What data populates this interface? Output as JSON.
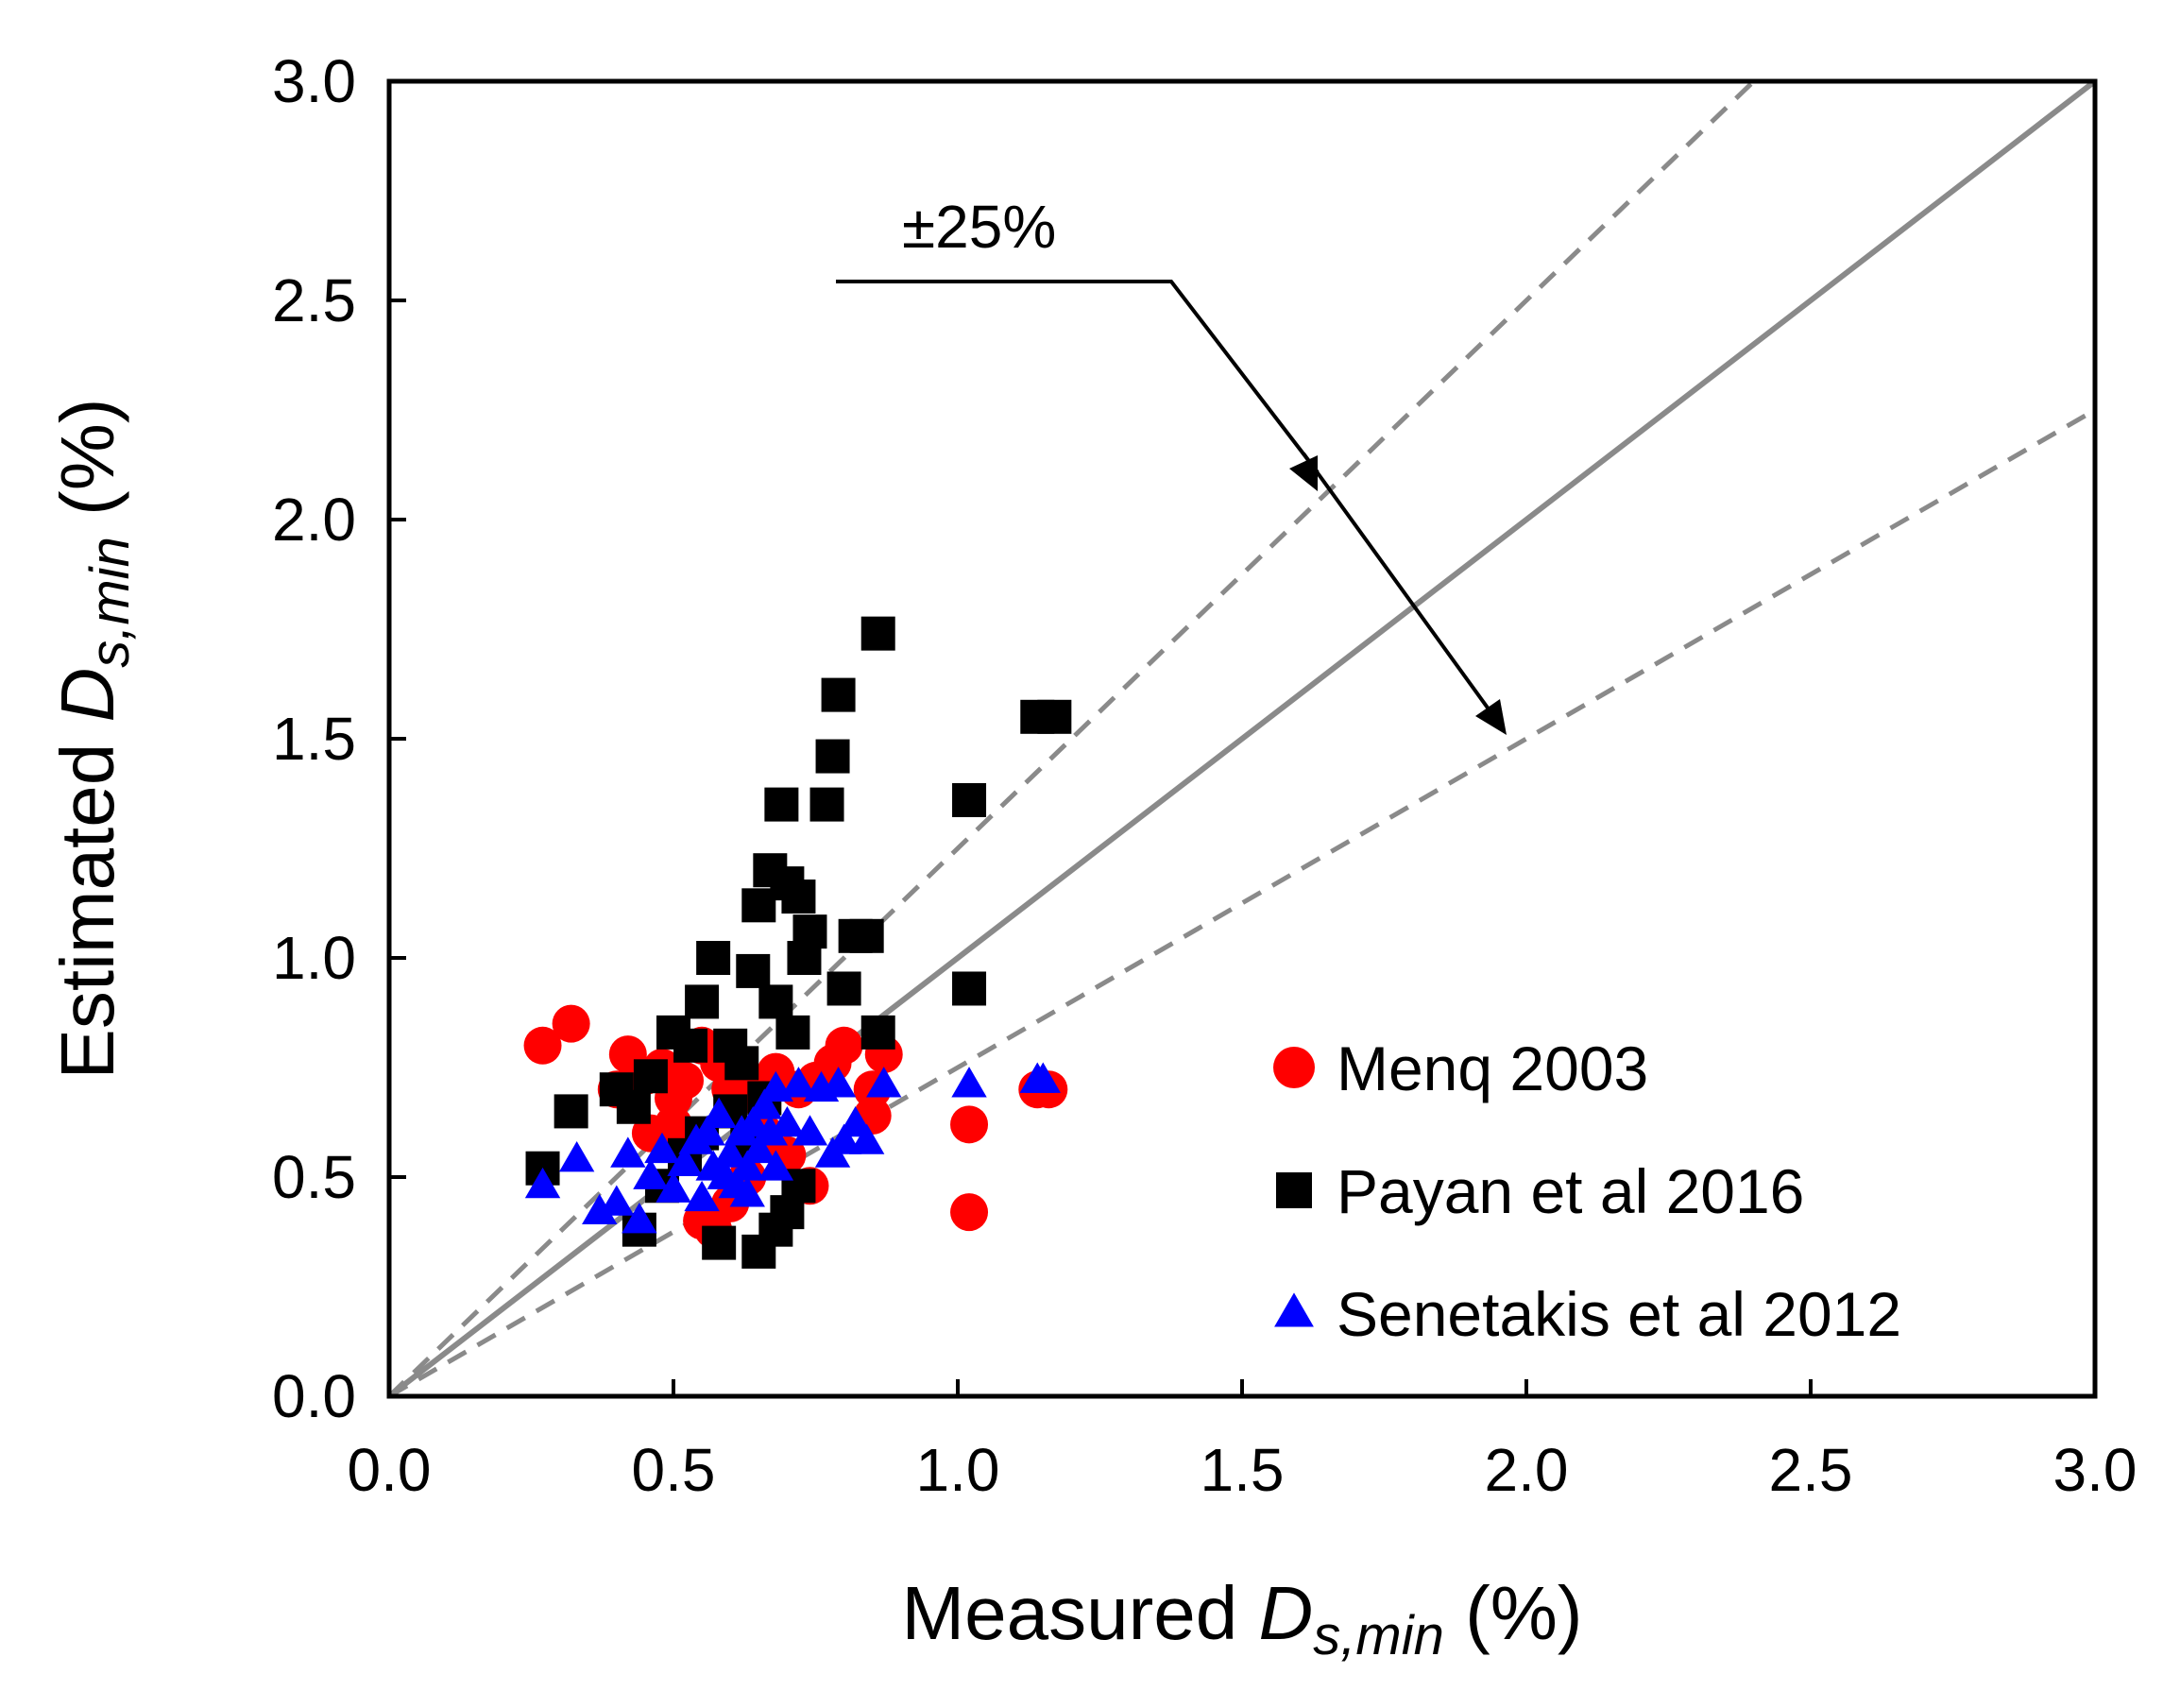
{
  "chart_data": {
    "type": "scatter",
    "xlabel": {
      "prefix": "Measured ",
      "var": "D",
      "sub": "s,min",
      "suffix": " (%)"
    },
    "ylabel": {
      "prefix": "Estimated ",
      "var": "D",
      "sub": "s,min",
      "suffix": " (%)"
    },
    "xlim": [
      0,
      3
    ],
    "ylim": [
      0,
      3
    ],
    "xticks": [
      "0.0",
      "0.5",
      "1.0",
      "1.5",
      "2.0",
      "2.5",
      "3.0"
    ],
    "yticks": [
      "0.0",
      "0.5",
      "1.0",
      "1.5",
      "2.0",
      "2.5",
      "3.0"
    ],
    "grid": false,
    "legend_position": "bottom-right",
    "annotation": "±25%",
    "reference_lines": [
      {
        "slope": 1.0,
        "style": "solid",
        "color": "#8a8a8a"
      },
      {
        "slope": 1.25,
        "style": "dashed",
        "color": "#8a8a8a"
      },
      {
        "slope": 0.75,
        "style": "dashed",
        "color": "#8a8a8a"
      }
    ],
    "series": [
      {
        "name": "Menq 2003",
        "marker": "circle",
        "color": "#ff0000",
        "points": [
          [
            0.27,
            0.8
          ],
          [
            0.32,
            0.85
          ],
          [
            0.4,
            0.7
          ],
          [
            0.42,
            0.78
          ],
          [
            0.45,
            0.73
          ],
          [
            0.48,
            0.75
          ],
          [
            0.5,
            0.68
          ],
          [
            0.52,
            0.72
          ],
          [
            0.55,
            0.8
          ],
          [
            0.58,
            0.76
          ],
          [
            0.6,
            0.7
          ],
          [
            0.62,
            0.73
          ],
          [
            0.65,
            0.68
          ],
          [
            0.68,
            0.74
          ],
          [
            0.72,
            0.7
          ],
          [
            0.75,
            0.72
          ],
          [
            0.78,
            0.76
          ],
          [
            0.8,
            0.8
          ],
          [
            0.85,
            0.7
          ],
          [
            0.87,
            0.78
          ],
          [
            0.85,
            0.64
          ],
          [
            0.55,
            0.4
          ],
          [
            0.57,
            0.38
          ],
          [
            0.6,
            0.44
          ],
          [
            0.63,
            0.5
          ],
          [
            0.7,
            0.55
          ],
          [
            0.74,
            0.48
          ],
          [
            0.5,
            0.62
          ],
          [
            0.46,
            0.6
          ],
          [
            0.66,
            0.6
          ],
          [
            1.02,
            0.62
          ],
          [
            1.02,
            0.42
          ],
          [
            1.14,
            0.7
          ],
          [
            1.16,
            0.7
          ]
        ]
      },
      {
        "name": "Payan et al 2016",
        "marker": "square",
        "color": "#000000",
        "points": [
          [
            0.27,
            0.52
          ],
          [
            0.32,
            0.65
          ],
          [
            0.4,
            0.7
          ],
          [
            0.43,
            0.66
          ],
          [
            0.46,
            0.73
          ],
          [
            0.44,
            0.38
          ],
          [
            0.5,
            0.83
          ],
          [
            0.53,
            0.8
          ],
          [
            0.55,
            0.9
          ],
          [
            0.57,
            1.0
          ],
          [
            0.6,
            0.8
          ],
          [
            0.62,
            0.76
          ],
          [
            0.64,
            0.97
          ],
          [
            0.65,
            1.12
          ],
          [
            0.67,
            1.2
          ],
          [
            0.68,
            0.9
          ],
          [
            0.7,
            1.17
          ],
          [
            0.71,
            0.83
          ],
          [
            0.72,
            1.14
          ],
          [
            0.73,
            1.0
          ],
          [
            0.74,
            1.06
          ],
          [
            0.69,
            1.35
          ],
          [
            0.77,
            1.35
          ],
          [
            0.78,
            1.46
          ],
          [
            0.79,
            1.6
          ],
          [
            0.86,
            1.74
          ],
          [
            0.8,
            0.93
          ],
          [
            0.82,
            1.05
          ],
          [
            0.84,
            1.05
          ],
          [
            0.86,
            0.83
          ],
          [
            1.02,
            1.36
          ],
          [
            1.02,
            0.93
          ],
          [
            1.14,
            1.55
          ],
          [
            1.17,
            1.55
          ],
          [
            0.58,
            0.35
          ],
          [
            0.65,
            0.33
          ],
          [
            0.68,
            0.38
          ],
          [
            0.7,
            0.42
          ],
          [
            0.72,
            0.48
          ],
          [
            0.55,
            0.6
          ],
          [
            0.52,
            0.55
          ],
          [
            0.6,
            0.65
          ],
          [
            0.63,
            0.58
          ],
          [
            0.66,
            0.68
          ],
          [
            0.48,
            0.48
          ]
        ]
      },
      {
        "name": "Senetakis et al 2012",
        "marker": "triangle",
        "color": "#0000ff",
        "points": [
          [
            0.27,
            0.48
          ],
          [
            0.33,
            0.54
          ],
          [
            0.37,
            0.42
          ],
          [
            0.4,
            0.44
          ],
          [
            0.42,
            0.55
          ],
          [
            0.44,
            0.4
          ],
          [
            0.46,
            0.5
          ],
          [
            0.48,
            0.56
          ],
          [
            0.5,
            0.47
          ],
          [
            0.52,
            0.53
          ],
          [
            0.54,
            0.58
          ],
          [
            0.56,
            0.6
          ],
          [
            0.57,
            0.52
          ],
          [
            0.58,
            0.64
          ],
          [
            0.6,
            0.55
          ],
          [
            0.61,
            0.48
          ],
          [
            0.62,
            0.6
          ],
          [
            0.63,
            0.52
          ],
          [
            0.64,
            0.62
          ],
          [
            0.65,
            0.56
          ],
          [
            0.66,
            0.66
          ],
          [
            0.67,
            0.6
          ],
          [
            0.68,
            0.7
          ],
          [
            0.7,
            0.62
          ],
          [
            0.72,
            0.71
          ],
          [
            0.74,
            0.6
          ],
          [
            0.76,
            0.7
          ],
          [
            0.78,
            0.55
          ],
          [
            0.79,
            0.71
          ],
          [
            0.8,
            0.58
          ],
          [
            0.82,
            0.62
          ],
          [
            0.84,
            0.58
          ],
          [
            0.87,
            0.71
          ],
          [
            1.02,
            0.71
          ],
          [
            1.14,
            0.72
          ],
          [
            1.15,
            0.72
          ],
          [
            0.55,
            0.45
          ],
          [
            0.59,
            0.5
          ],
          [
            0.63,
            0.46
          ],
          [
            0.68,
            0.52
          ]
        ]
      }
    ]
  }
}
